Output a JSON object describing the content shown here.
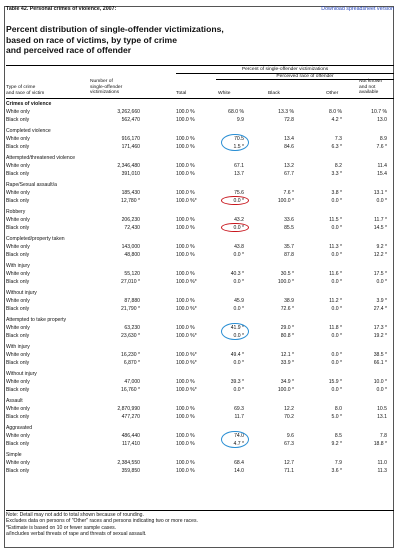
{
  "header": {
    "table_number": "Table 42. Personal crimes of violence, 2007:",
    "download_link": "Download spreadsheet version",
    "title_lines": [
      "Percent distribution of single-offender victimizations,",
      "based on race of victims, by type of crime",
      "and perceived race of offender"
    ]
  },
  "columns": {
    "span_top": "Percent of single-offender victimizations",
    "span_sub": "Perceived race of offender",
    "type": [
      "Type of crime",
      "and race of victim"
    ],
    "number": [
      "Number of",
      "single-offender",
      "victimizations"
    ],
    "total": "Total",
    "white": "White",
    "black": "Black",
    "other": "Other",
    "not_known": [
      "Not known",
      "and not",
      "available"
    ]
  },
  "rows": [
    {
      "label": "Crimes of violence",
      "section": true
    },
    {
      "label": "White only",
      "num": "3,262,660",
      "total": "100.0 %",
      "white": "68.0 %",
      "black": "13.3 %",
      "other": "8.0 %",
      "nk": "10.7 %"
    },
    {
      "label": "Black only",
      "num": "562,470",
      "total": "100.0 %",
      "white": "9.9",
      "black": "72.8",
      "other": "4.2 *",
      "nk": "13.0"
    },
    {
      "label": "Completed violence"
    },
    {
      "label": "White only",
      "num": "916,170",
      "total": "100.0 %",
      "white": "70.5",
      "black": "13.4",
      "other": "7.3",
      "nk": "8.9"
    },
    {
      "label": "Black only",
      "num": "171,460",
      "total": "100.0 %",
      "white": "1.5 *",
      "black": "84.6",
      "other": "6.3 *",
      "nk": "7.6 *"
    },
    {
      "label": "Attempted/threatened violence"
    },
    {
      "label": "White only",
      "num": "2,346,480",
      "total": "100.0 %",
      "white": "67.1",
      "black": "13.2",
      "other": "8.2",
      "nk": "11.4"
    },
    {
      "label": "Black only",
      "num": "391,010",
      "total": "100.0 %",
      "white": "13.7",
      "black": "67.7",
      "other": "3.3 *",
      "nk": "15.4"
    },
    {
      "label": "Rape/Sexual assault/a"
    },
    {
      "label": "White only",
      "num": "185,430",
      "total": "100.0 %",
      "white": "75.6",
      "black": "7.6 *",
      "other": "3.8 *",
      "nk": "13.1 *"
    },
    {
      "label": "Black only",
      "num": "12,780 *",
      "total": "100.0 %*",
      "white": "0.0 *",
      "black": "100.0 *",
      "other": "0.0 *",
      "nk": "0.0 *"
    },
    {
      "label": "Robbery"
    },
    {
      "label": "White only",
      "num": "206,230",
      "total": "100.0 %",
      "white": "43.2",
      "black": "33.6",
      "other": "11.5 *",
      "nk": "11.7 *"
    },
    {
      "label": "Black only",
      "num": "72,430",
      "total": "100.0 %",
      "white": "0.0 *",
      "black": "85.5",
      "other": "0.0 *",
      "nk": "14.5 *"
    },
    {
      "label": "   Completed/property taken"
    },
    {
      "label": "White only",
      "num": "143,000",
      "total": "100.0 %",
      "white": "43.8",
      "black": "35.7",
      "other": "11.3 *",
      "nk": "9.2 *"
    },
    {
      "label": "Black only",
      "num": "48,800",
      "total": "100.0 %",
      "white": "0.0 *",
      "black": "87.8",
      "other": "0.0 *",
      "nk": "12.2 *"
    },
    {
      "label": "      With injury"
    },
    {
      "label": "White only",
      "num": "55,120",
      "total": "100.0 %",
      "white": "40.3 *",
      "black": "30.5 *",
      "other": "11.6 *",
      "nk": "17.5 *"
    },
    {
      "label": "Black only",
      "num": "27,010 *",
      "total": "100.0 %*",
      "white": "0.0 *",
      "black": "100.0 *",
      "other": "0.0 *",
      "nk": "0.0 *"
    },
    {
      "label": "      Without injury"
    },
    {
      "label": "White only",
      "num": "87,880",
      "total": "100.0 %",
      "white": "45.9",
      "black": "38.9",
      "other": "11.2 *",
      "nk": "3.9 *"
    },
    {
      "label": "Black only",
      "num": "21,790 *",
      "total": "100.0 %*",
      "white": "0.0 *",
      "black": "72.6 *",
      "other": "0.0 *",
      "nk": "27.4 *"
    },
    {
      "label": "   Attempted to take property"
    },
    {
      "label": "White only",
      "num": "63,230",
      "total": "100.0 %",
      "white": "41.9 *",
      "black": "29.0 *",
      "other": "11.8 *",
      "nk": "17.3 *"
    },
    {
      "label": "Black only",
      "num": "23,630 *",
      "total": "100.0 %*",
      "white": "0.0 *",
      "black": "80.8 *",
      "other": "0.0 *",
      "nk": "19.2 *"
    },
    {
      "label": "      With injury"
    },
    {
      "label": "White only",
      "num": "16,230 *",
      "total": "100.0 %*",
      "white": "49.4 *",
      "black": "12.1 *",
      "other": "0.0 *",
      "nk": "38.5 *"
    },
    {
      "label": "Black only",
      "num": "6,870 *",
      "total": "100.0 %*",
      "white": "0.0 *",
      "black": "33.9 *",
      "other": "0.0 *",
      "nk": "66.1 *"
    },
    {
      "label": "      Without injury"
    },
    {
      "label": "White only",
      "num": "47,000",
      "total": "100.0 %",
      "white": "39.3 *",
      "black": "34.9 *",
      "other": "15.9 *",
      "nk": "10.0 *"
    },
    {
      "label": "Black only",
      "num": "16,760 *",
      "total": "100.0 %*",
      "white": "0.0 *",
      "black": "100.0 *",
      "other": "0.0 *",
      "nk": "0.0 *"
    },
    {
      "label": "Assault"
    },
    {
      "label": "White only",
      "num": "2,870,990",
      "total": "100.0 %",
      "white": "69.3",
      "black": "12.2",
      "other": "8.0",
      "nk": "10.5"
    },
    {
      "label": "Black only",
      "num": "477,270",
      "total": "100.0 %",
      "white": "11.7",
      "black": "70.2",
      "other": "5.0 *",
      "nk": "13.1"
    },
    {
      "label": "   Aggravated"
    },
    {
      "label": "White only",
      "num": "486,440",
      "total": "100.0 %",
      "white": "74.0",
      "black": "9.6",
      "other": "8.5",
      "nk": "7.8"
    },
    {
      "label": "Black only",
      "num": "117,410",
      "total": "100.0 %",
      "white": "4.7 *",
      "black": "67.3",
      "other": "9.2 *",
      "nk": "18.8 *"
    },
    {
      "label": "   Simple"
    },
    {
      "label": "White only",
      "num": "2,384,550",
      "total": "100.0 %",
      "white": "68.4",
      "black": "12.7",
      "other": "7.9",
      "nk": "11.0"
    },
    {
      "label": "Black only",
      "num": "359,850",
      "total": "100.0 %",
      "white": "14.0",
      "black": "71.1",
      "other": "3.6 *",
      "nk": "11.3"
    }
  ],
  "notes": [
    "Note: Detail may not add to total shown because of rounding.",
    "Excludes data on persons of \"Other\" races and persons indicating two or more races.",
    "*Estimate is based on 10 or fewer sample cases.",
    "a/Includes verbal threats of rape and threats of sexual assault."
  ],
  "highlight_colors": {
    "blue": "#2b8fd4",
    "red": "#c8161d"
  }
}
